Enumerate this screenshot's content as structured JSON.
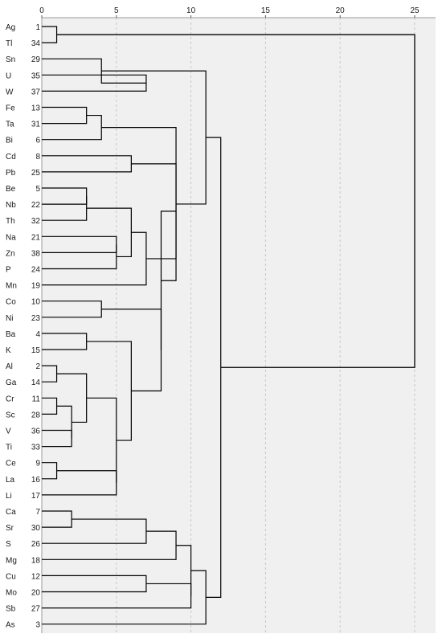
{
  "chart_data": {
    "type": "dendrogram",
    "title": "",
    "xlabel": "",
    "ylabel": "",
    "xlim": [
      0,
      25
    ],
    "x_ticks": [
      0,
      5,
      10,
      15,
      20,
      25
    ],
    "grid": "vertical dashed",
    "colors": {
      "background": "#f0f0f0",
      "grid": "#c9c9c9",
      "lines": "#000000"
    },
    "leaves": [
      {
        "label": "Ag",
        "case": "1"
      },
      {
        "label": "Tl",
        "case": "34"
      },
      {
        "label": "Sn",
        "case": "29"
      },
      {
        "label": "U",
        "case": "35"
      },
      {
        "label": "W",
        "case": "37"
      },
      {
        "label": "Fe",
        "case": "13"
      },
      {
        "label": "Ta",
        "case": "31"
      },
      {
        "label": "Bi",
        "case": "6"
      },
      {
        "label": "Cd",
        "case": "8"
      },
      {
        "label": "Pb",
        "case": "25"
      },
      {
        "label": "Be",
        "case": "5"
      },
      {
        "label": "Nb",
        "case": "22"
      },
      {
        "label": "Th",
        "case": "32"
      },
      {
        "label": "Na",
        "case": "21"
      },
      {
        "label": "Zn",
        "case": "38"
      },
      {
        "label": "P",
        "case": "24"
      },
      {
        "label": "Mn",
        "case": "19"
      },
      {
        "label": "Co",
        "case": "10"
      },
      {
        "label": "Ni",
        "case": "23"
      },
      {
        "label": "Ba",
        "case": "4"
      },
      {
        "label": "K",
        "case": "15"
      },
      {
        "label": "Al",
        "case": "2"
      },
      {
        "label": "Ga",
        "case": "14"
      },
      {
        "label": "Cr",
        "case": "11"
      },
      {
        "label": "Sc",
        "case": "28"
      },
      {
        "label": "V",
        "case": "36"
      },
      {
        "label": "Ti",
        "case": "33"
      },
      {
        "label": "Ce",
        "case": "9"
      },
      {
        "label": "La",
        "case": "16"
      },
      {
        "label": "Li",
        "case": "17"
      },
      {
        "label": "Ca",
        "case": "7"
      },
      {
        "label": "Sr",
        "case": "30"
      },
      {
        "label": "S",
        "case": "26"
      },
      {
        "label": "Mg",
        "case": "18"
      },
      {
        "label": "Cu",
        "case": "12"
      },
      {
        "label": "Mo",
        "case": "20"
      },
      {
        "label": "Sb",
        "case": "27"
      },
      {
        "label": "As",
        "case": "3"
      }
    ],
    "merges": [
      {
        "id": "AgTl",
        "a": "Ag",
        "b": "Tl",
        "distance": 1
      },
      {
        "id": "UW",
        "a": "U",
        "b": "W",
        "distance": 7
      },
      {
        "id": "SnUW",
        "a": "Sn",
        "b": "UW",
        "distance": 4
      },
      {
        "id": "FeTa",
        "a": "Fe",
        "b": "Ta",
        "distance": 3
      },
      {
        "id": "FeTaBi",
        "a": "FeTa",
        "b": "Bi",
        "distance": 4
      },
      {
        "id": "CdPb",
        "a": "Cd",
        "b": "Pb",
        "distance": 6
      },
      {
        "id": "BeNb",
        "a": "Be",
        "b": "Nb",
        "distance": 3
      },
      {
        "id": "BeNbTh",
        "a": "BeNb",
        "b": "Th",
        "distance": 3
      },
      {
        "id": "NaZn",
        "a": "Na",
        "b": "Zn",
        "distance": 5
      },
      {
        "id": "NaZnP",
        "a": "NaZn",
        "b": "P",
        "distance": 5
      },
      {
        "id": "G_BeNa",
        "a": "BeNbTh",
        "b": "NaZnP",
        "distance": 6
      },
      {
        "id": "G_BeNaMn",
        "a": "G_BeNa",
        "b": "Mn",
        "distance": 7
      },
      {
        "id": "G_CdBe",
        "a": "CdPb",
        "b": "G_BeNaMn",
        "distance": 9
      },
      {
        "id": "CoNi",
        "a": "Co",
        "b": "Ni",
        "distance": 4
      },
      {
        "id": "BaK",
        "a": "Ba",
        "b": "K",
        "distance": 3
      },
      {
        "id": "AlGa",
        "a": "Al",
        "b": "Ga",
        "distance": 1
      },
      {
        "id": "CrSc",
        "a": "Cr",
        "b": "Sc",
        "distance": 1
      },
      {
        "id": "VTi",
        "a": "V",
        "b": "Ti",
        "distance": 2
      },
      {
        "id": "CrScVTi",
        "a": "CrSc",
        "b": "VTi",
        "distance": 2
      },
      {
        "id": "AlGaCrV",
        "a": "AlGa",
        "b": "CrScVTi",
        "distance": 3
      },
      {
        "id": "CeLa",
        "a": "Ce",
        "b": "La",
        "distance": 1
      },
      {
        "id": "CeLaLi",
        "a": "CeLa",
        "b": "Li",
        "distance": 5
      },
      {
        "id": "AlCe",
        "a": "AlGaCrV",
        "b": "CeLaLi",
        "distance": 5
      },
      {
        "id": "BaAl",
        "a": "BaK",
        "b": "AlCe",
        "distance": 6
      },
      {
        "id": "CoBa",
        "a": "CoNi",
        "b": "BaAl",
        "distance": 8
      },
      {
        "id": "G_CdCo",
        "a": "G_CdBe",
        "b": "CoBa",
        "distance": 8
      },
      {
        "id": "G_Mid",
        "a": "G_CdCo",
        "b": "FeTaBi",
        "distance": 9
      },
      {
        "id": "G_Top",
        "a": "SnUW",
        "b": "G_Mid",
        "distance": 11
      },
      {
        "id": "CaSr",
        "a": "Ca",
        "b": "Sr",
        "distance": 2
      },
      {
        "id": "CaSrS",
        "a": "CaSr",
        "b": "S",
        "distance": 7
      },
      {
        "id": "CaSrSMg",
        "a": "CaSrS",
        "b": "Mg",
        "distance": 9
      },
      {
        "id": "CuMo",
        "a": "Cu",
        "b": "Mo",
        "distance": 7
      },
      {
        "id": "CuMoSb",
        "a": "CuMo",
        "b": "Sb",
        "distance": 10
      },
      {
        "id": "CaCu",
        "a": "CaSrSMg",
        "b": "CuMoSb",
        "distance": 10
      },
      {
        "id": "CaCuAs",
        "a": "CaCu",
        "b": "As",
        "distance": 11
      },
      {
        "id": "G_All",
        "a": "G_Top",
        "b": "CaCuAs",
        "distance": 12
      },
      {
        "id": "ROOT",
        "a": "AgTl",
        "b": "G_All",
        "distance": 25
      }
    ]
  }
}
